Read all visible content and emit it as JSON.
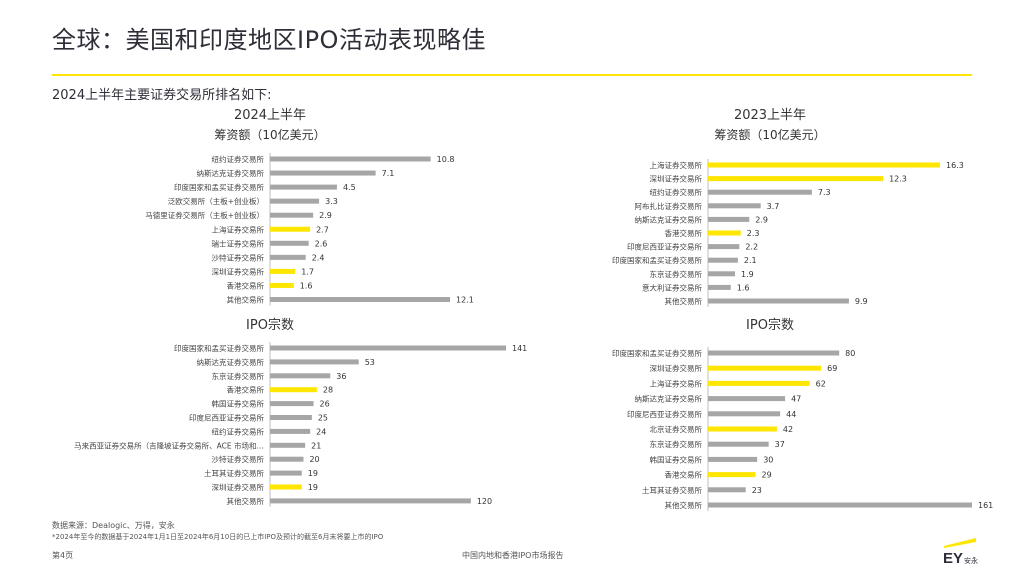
{
  "page": {
    "title": "全球：美国和印度地区IPO活动表现略佳",
    "subtitle": "2024上半年主要证券交易所排名如下:",
    "source": "数据来源：Dealogic、万得，安永",
    "note": "*2024年至今的数据基于2024年1月1日至2024年6月10日的已上市IPO及预计的截至6月末将要上市的IPO",
    "page_number": "第4页",
    "report_name": "中国内地和香港IPO市场报告",
    "logo_text": "EY安永",
    "colors": {
      "highlight": "#ffe600",
      "bar": "#a6a6a6",
      "text": "#333333",
      "title": "#2e2e38"
    }
  },
  "chart_data": [
    {
      "type": "bar",
      "orientation": "horizontal",
      "title": "2024上半年",
      "subtitle": "筹资额（10亿美元）",
      "categories": [
        "纽约证券交易所",
        "纳斯达克证券交易所",
        "印度国家和孟买证券交易所",
        "泛欧交易所（主板+创业板）",
        "马德里证券交易所（主板+创业板）",
        "上海证券交易所",
        "瑞士证券交易所",
        "沙特证券交易所",
        "深圳证券交易所",
        "香港交易所",
        "其他交易所"
      ],
      "values": [
        10.8,
        7.1,
        4.5,
        3.3,
        2.9,
        2.7,
        2.6,
        2.4,
        1.7,
        1.6,
        12.1
      ],
      "labels": [
        "10.8",
        "7.1",
        "4.5",
        "3.3",
        "2.9",
        "2.7",
        "2.6",
        "2.4",
        "1.7",
        "1.6",
        "12.1"
      ],
      "highlight": [
        false,
        false,
        false,
        false,
        false,
        true,
        false,
        false,
        true,
        true,
        false
      ]
    },
    {
      "type": "bar",
      "orientation": "horizontal",
      "title": "2023上半年",
      "subtitle": "筹资额（10亿美元）",
      "categories": [
        "上海证券交易所",
        "深圳证券交易所",
        "纽约证券交易所",
        "阿布扎比证券交易所",
        "纳斯达克证券交易所",
        "香港交易所",
        "印度尼西亚证券交易所",
        "印度国家和孟买证券交易所",
        "东京证券交易所",
        "意大利证券交易所",
        "其他交易所"
      ],
      "values": [
        16.3,
        12.3,
        7.3,
        3.7,
        2.9,
        2.3,
        2.2,
        2.1,
        1.9,
        1.6,
        9.9
      ],
      "labels": [
        "16.3",
        "12.3",
        "7.3",
        "3.7",
        "2.9",
        "2.3",
        "2.2",
        "2.1",
        "1.9",
        "1.6",
        "9.9"
      ],
      "highlight": [
        true,
        true,
        false,
        false,
        false,
        true,
        false,
        false,
        false,
        false,
        false
      ]
    },
    {
      "type": "bar",
      "orientation": "horizontal",
      "title": "IPO宗数",
      "subtitle": "",
      "categories": [
        "印度国家和孟买证券交易所",
        "纳斯达克证券交易所",
        "东京证券交易所",
        "香港交易所",
        "韩国证券交易所",
        "印度尼西亚证券交易所",
        "纽约证券交易所",
        "马来西亚证券交易所（吉隆坡证券交易所、ACE 市场和…",
        "沙特证券交易所",
        "土耳其证券交易所",
        "深圳证券交易所",
        "其他交易所"
      ],
      "values": [
        141,
        53,
        36,
        28,
        26,
        25,
        24,
        21,
        20,
        19,
        19,
        120
      ],
      "labels": [
        "141",
        "53",
        "36",
        "28",
        "26",
        "25",
        "24",
        "21",
        "20",
        "19",
        "19",
        "120"
      ],
      "highlight": [
        false,
        false,
        false,
        true,
        false,
        false,
        false,
        false,
        false,
        false,
        true,
        false
      ]
    },
    {
      "type": "bar",
      "orientation": "horizontal",
      "title": "IPO宗数",
      "subtitle": "",
      "categories": [
        "印度国家和孟买证券交易所",
        "深圳证券交易所",
        "上海证券交易所",
        "纳斯达克证券交易所",
        "印度尼西亚证券交易所",
        "北京证券交易所",
        "东京证券交易所",
        "韩国证券交易所",
        "香港交易所",
        "土耳其证券交易所",
        "其他交易所"
      ],
      "values": [
        80,
        69,
        62,
        47,
        44,
        42,
        37,
        30,
        29,
        23,
        161
      ],
      "labels": [
        "80",
        "69",
        "62",
        "47",
        "44",
        "42",
        "37",
        "30",
        "29",
        "23",
        "161"
      ],
      "highlight": [
        false,
        true,
        true,
        false,
        false,
        true,
        false,
        false,
        true,
        false,
        false
      ]
    }
  ]
}
